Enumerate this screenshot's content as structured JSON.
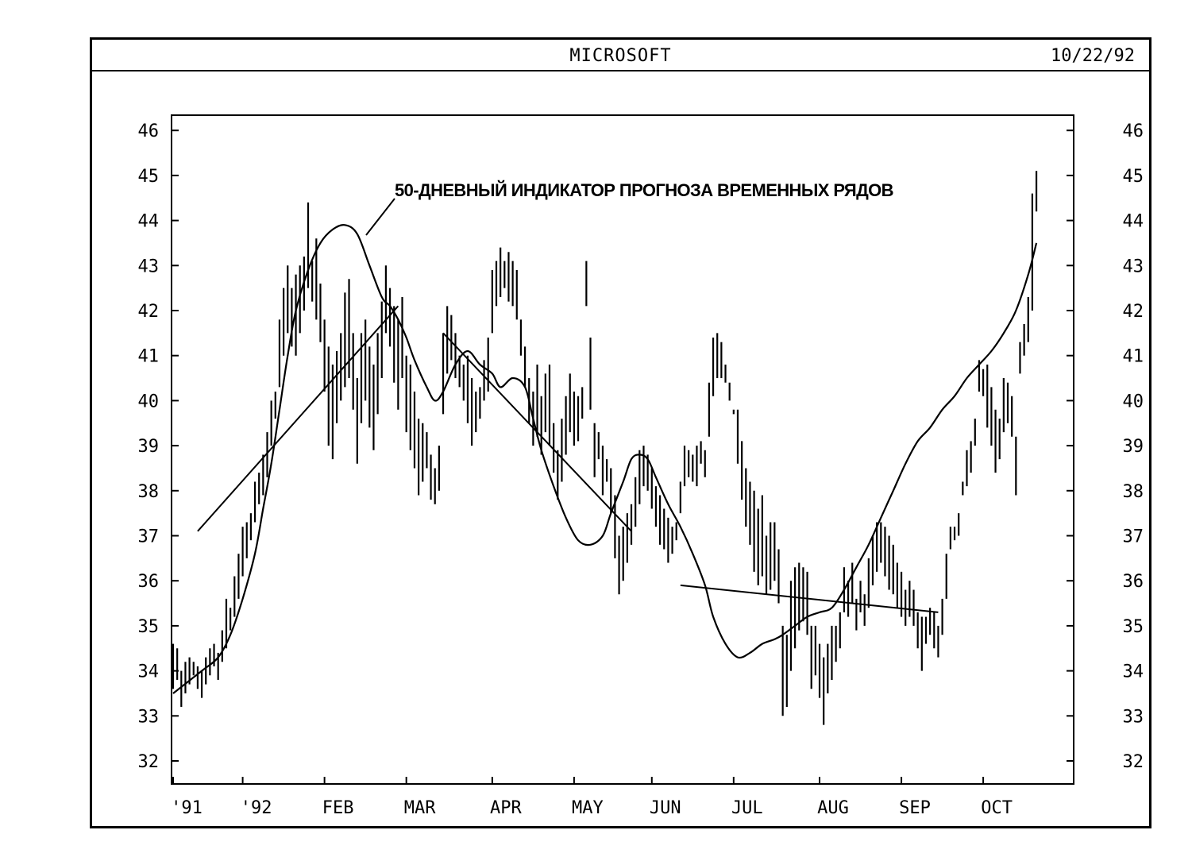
{
  "chart_data": {
    "type": "bar",
    "title": "MICROSOFT",
    "date": "10/22/92",
    "xlabel": "",
    "ylabel": "",
    "ylim": [
      32,
      46
    ],
    "yticks": [
      32,
      33,
      34,
      35,
      36,
      37,
      38,
      39,
      40,
      41,
      42,
      43,
      44,
      45,
      46
    ],
    "xlim": [
      0,
      211
    ],
    "xticks": [
      {
        "label": "'91",
        "day": 0
      },
      {
        "label": "'92",
        "day": 17
      },
      {
        "label": "FEB",
        "day": 37
      },
      {
        "label": "MAR",
        "day": 57
      },
      {
        "label": "APR",
        "day": 78
      },
      {
        "label": "MAY",
        "day": 98
      },
      {
        "label": "JUN",
        "day": 117
      },
      {
        "label": "JUL",
        "day": 137
      },
      {
        "label": "AUG",
        "day": 158
      },
      {
        "label": "SEP",
        "day": 178
      },
      {
        "label": "OCT",
        "day": 198
      }
    ],
    "annotation": "50-ДНЕВНЫЙ ИНДИКАТОР ПРОГНОЗА ВРЕМЕННЫХ РЯДОВ",
    "ohlc_bars": [
      [
        0,
        33.6,
        34.6
      ],
      [
        1,
        33.8,
        34.5
      ],
      [
        2,
        33.2,
        34.0
      ],
      [
        3,
        33.5,
        34.2
      ],
      [
        4,
        33.7,
        34.3
      ],
      [
        5,
        33.9,
        34.2
      ],
      [
        6,
        33.6,
        34.1
      ],
      [
        7,
        33.4,
        34.0
      ],
      [
        8,
        33.7,
        34.3
      ],
      [
        9,
        33.9,
        34.5
      ],
      [
        10,
        34.1,
        34.6
      ],
      [
        11,
        33.8,
        34.4
      ],
      [
        12,
        34.2,
        34.9
      ],
      [
        13,
        34.5,
        35.6
      ],
      [
        14,
        34.9,
        35.4
      ],
      [
        15,
        35.2,
        36.1
      ],
      [
        16,
        35.6,
        36.6
      ],
      [
        17,
        36.1,
        37.2
      ],
      [
        18,
        36.5,
        37.3
      ],
      [
        19,
        36.9,
        37.5
      ],
      [
        20,
        37.3,
        38.2
      ],
      [
        21,
        37.7,
        38.4
      ],
      [
        22,
        37.9,
        38.8
      ],
      [
        23,
        38.3,
        39.3
      ],
      [
        24,
        39.0,
        40.0
      ],
      [
        25,
        39.6,
        40.2
      ],
      [
        26,
        40.3,
        41.8
      ],
      [
        27,
        41.0,
        42.5
      ],
      [
        28,
        41.5,
        43.0
      ],
      [
        29,
        41.2,
        42.5
      ],
      [
        30,
        41.0,
        42.8
      ],
      [
        31,
        41.5,
        43.0
      ],
      [
        32,
        42.0,
        43.2
      ],
      [
        33,
        42.5,
        44.4
      ],
      [
        34,
        42.2,
        43.1
      ],
      [
        35,
        41.8,
        43.6
      ],
      [
        36,
        41.3,
        42.6
      ],
      [
        37,
        40.2,
        41.8
      ],
      [
        38,
        39.0,
        41.2
      ],
      [
        39,
        38.7,
        40.8
      ],
      [
        40,
        39.5,
        41.1
      ],
      [
        41,
        40.0,
        41.5
      ],
      [
        42,
        40.3,
        42.4
      ],
      [
        43,
        40.5,
        42.7
      ],
      [
        44,
        39.8,
        41.5
      ],
      [
        45,
        38.6,
        40.5
      ],
      [
        46,
        39.5,
        41.5
      ],
      [
        47,
        40.0,
        41.8
      ],
      [
        48,
        39.4,
        41.2
      ],
      [
        49,
        38.9,
        40.8
      ],
      [
        50,
        39.7,
        41.5
      ],
      [
        51,
        40.5,
        42.2
      ],
      [
        52,
        41.5,
        43.0
      ],
      [
        53,
        41.2,
        42.5
      ],
      [
        54,
        40.4,
        42.1
      ],
      [
        55,
        39.8,
        41.8
      ],
      [
        56,
        40.5,
        42.3
      ],
      [
        57,
        39.3,
        41.0
      ],
      [
        58,
        38.9,
        40.8
      ],
      [
        59,
        38.5,
        40.2
      ],
      [
        60,
        37.9,
        39.6
      ],
      [
        61,
        38.2,
        39.5
      ],
      [
        62,
        38.5,
        39.3
      ],
      [
        63,
        37.8,
        38.8
      ],
      [
        64,
        37.7,
        38.5
      ],
      [
        65,
        38.0,
        39.0
      ],
      [
        66,
        39.7,
        41.5
      ],
      [
        67,
        40.6,
        42.1
      ],
      [
        68,
        40.9,
        41.9
      ],
      [
        69,
        40.5,
        41.5
      ],
      [
        70,
        40.3,
        41.0
      ],
      [
        71,
        40.0,
        40.8
      ],
      [
        72,
        39.5,
        41.0
      ],
      [
        73,
        39.0,
        40.5
      ],
      [
        74,
        39.3,
        40.2
      ],
      [
        75,
        39.6,
        40.3
      ],
      [
        76,
        40.0,
        40.9
      ],
      [
        77,
        40.2,
        41.4
      ],
      [
        78,
        41.5,
        42.9
      ],
      [
        79,
        42.1,
        43.1
      ],
      [
        80,
        42.3,
        43.4
      ],
      [
        81,
        42.5,
        43.1
      ],
      [
        82,
        42.2,
        43.3
      ],
      [
        83,
        42.1,
        43.1
      ],
      [
        84,
        41.8,
        42.9
      ],
      [
        85,
        41.0,
        41.8
      ],
      [
        86,
        40.3,
        41.2
      ],
      [
        87,
        39.5,
        40.5
      ],
      [
        88,
        39.0,
        40.2
      ],
      [
        89,
        39.2,
        40.8
      ],
      [
        90,
        38.8,
        40.1
      ],
      [
        91,
        39.3,
        40.6
      ],
      [
        92,
        39.0,
        40.8
      ],
      [
        93,
        38.4,
        39.5
      ],
      [
        94,
        37.8,
        38.9
      ],
      [
        95,
        38.2,
        39.6
      ],
      [
        96,
        38.8,
        40.1
      ],
      [
        97,
        39.3,
        40.6
      ],
      [
        98,
        39.0,
        40.2
      ],
      [
        99,
        39.1,
        40.1
      ],
      [
        100,
        39.6,
        40.3
      ],
      [
        101,
        42.1,
        43.1
      ],
      [
        102,
        39.8,
        41.4
      ],
      [
        103,
        38.3,
        39.5
      ],
      [
        104,
        38.7,
        39.3
      ],
      [
        105,
        37.9,
        39.0
      ],
      [
        106,
        38.2,
        38.7
      ],
      [
        107,
        37.5,
        38.5
      ],
      [
        108,
        36.5,
        37.9
      ],
      [
        109,
        35.7,
        37.0
      ],
      [
        110,
        36.0,
        37.2
      ],
      [
        111,
        36.4,
        37.5
      ],
      [
        112,
        36.8,
        37.7
      ],
      [
        113,
        37.2,
        38.3
      ],
      [
        114,
        37.7,
        38.9
      ],
      [
        115,
        38.1,
        39.0
      ],
      [
        116,
        38.0,
        38.8
      ],
      [
        117,
        37.6,
        38.5
      ],
      [
        118,
        37.2,
        38.1
      ],
      [
        119,
        36.8,
        37.9
      ],
      [
        120,
        36.7,
        37.6
      ],
      [
        121,
        36.4,
        37.4
      ],
      [
        122,
        36.6,
        37.2
      ],
      [
        123,
        36.9,
        37.3
      ],
      [
        124,
        37.5,
        38.2
      ],
      [
        125,
        38.1,
        39.0
      ],
      [
        126,
        38.3,
        38.9
      ],
      [
        127,
        38.2,
        38.8
      ],
      [
        128,
        38.1,
        39.0
      ],
      [
        129,
        38.6,
        39.1
      ],
      [
        130,
        38.3,
        38.9
      ],
      [
        131,
        39.2,
        40.4
      ],
      [
        132,
        40.1,
        41.4
      ],
      [
        133,
        40.5,
        41.5
      ],
      [
        134,
        40.5,
        41.3
      ],
      [
        135,
        40.4,
        40.8
      ],
      [
        136,
        40.0,
        40.4
      ],
      [
        137,
        39.7,
        39.8
      ],
      [
        138,
        38.6,
        39.8
      ],
      [
        139,
        37.8,
        39.1
      ],
      [
        140,
        37.2,
        38.5
      ],
      [
        141,
        36.8,
        38.2
      ],
      [
        142,
        36.2,
        38.0
      ],
      [
        143,
        35.9,
        37.6
      ],
      [
        144,
        36.1,
        37.9
      ],
      [
        145,
        35.7,
        37.0
      ],
      [
        146,
        35.8,
        37.3
      ],
      [
        147,
        36.0,
        37.3
      ],
      [
        148,
        35.5,
        36.7
      ],
      [
        149,
        33.0,
        35.0
      ],
      [
        150,
        33.2,
        34.8
      ],
      [
        151,
        34.0,
        36.0
      ],
      [
        152,
        34.5,
        36.3
      ],
      [
        153,
        34.9,
        36.4
      ],
      [
        154,
        35.1,
        36.3
      ],
      [
        155,
        34.8,
        36.2
      ],
      [
        156,
        33.6,
        35.0
      ],
      [
        157,
        33.9,
        35.0
      ],
      [
        158,
        33.4,
        34.6
      ],
      [
        159,
        32.8,
        34.3
      ],
      [
        160,
        33.5,
        34.6
      ],
      [
        161,
        33.8,
        35.0
      ],
      [
        162,
        34.2,
        35.0
      ],
      [
        163,
        34.5,
        35.3
      ],
      [
        164,
        35.3,
        36.3
      ],
      [
        165,
        35.2,
        36.0
      ],
      [
        166,
        35.5,
        36.4
      ],
      [
        167,
        34.9,
        35.6
      ],
      [
        168,
        35.3,
        36.0
      ],
      [
        169,
        35.0,
        35.7
      ],
      [
        170,
        35.4,
        36.5
      ],
      [
        171,
        35.9,
        37.0
      ],
      [
        172,
        36.2,
        37.3
      ],
      [
        173,
        36.4,
        37.3
      ],
      [
        174,
        36.1,
        37.2
      ],
      [
        175,
        35.8,
        37.0
      ],
      [
        176,
        35.7,
        36.8
      ],
      [
        177,
        35.4,
        36.4
      ],
      [
        178,
        35.2,
        36.2
      ],
      [
        179,
        35.0,
        35.8
      ],
      [
        180,
        35.2,
        36.0
      ],
      [
        181,
        35.0,
        35.8
      ],
      [
        182,
        34.5,
        35.3
      ],
      [
        183,
        34.0,
        35.2
      ],
      [
        184,
        34.6,
        35.2
      ],
      [
        185,
        34.8,
        35.4
      ],
      [
        186,
        34.5,
        35.3
      ],
      [
        187,
        34.3,
        35.0
      ],
      [
        188,
        34.8,
        35.6
      ],
      [
        189,
        35.6,
        36.6
      ],
      [
        190,
        36.7,
        37.2
      ],
      [
        191,
        36.9,
        37.2
      ],
      [
        192,
        37.0,
        37.5
      ],
      [
        193,
        37.9,
        38.2
      ],
      [
        194,
        38.1,
        38.9
      ],
      [
        195,
        38.4,
        39.1
      ],
      [
        196,
        39.0,
        39.6
      ],
      [
        197,
        40.2,
        40.9
      ],
      [
        198,
        40.1,
        40.7
      ],
      [
        199,
        39.4,
        40.8
      ],
      [
        200,
        39.0,
        40.3
      ],
      [
        201,
        38.4,
        39.8
      ],
      [
        202,
        38.7,
        39.6
      ],
      [
        203,
        39.3,
        40.5
      ],
      [
        204,
        39.5,
        40.4
      ],
      [
        205,
        39.2,
        40.1
      ],
      [
        206,
        37.9,
        39.2
      ],
      [
        207,
        40.6,
        41.3
      ],
      [
        208,
        41.0,
        41.7
      ],
      [
        209,
        41.3,
        42.3
      ],
      [
        210,
        42.0,
        44.6
      ],
      [
        211,
        44.2,
        45.1
      ]
    ],
    "forecast_indicator": [
      [
        0,
        33.5
      ],
      [
        7,
        34.0
      ],
      [
        11,
        34.3
      ],
      [
        14,
        34.8
      ],
      [
        17,
        35.6
      ],
      [
        20,
        36.6
      ],
      [
        22,
        37.6
      ],
      [
        24,
        38.6
      ],
      [
        26,
        39.8
      ],
      [
        28,
        41.0
      ],
      [
        30,
        42.0
      ],
      [
        33,
        42.9
      ],
      [
        36,
        43.5
      ],
      [
        39,
        43.8
      ],
      [
        42,
        43.9
      ],
      [
        45,
        43.7
      ],
      [
        48,
        43.0
      ],
      [
        51,
        42.3
      ],
      [
        53,
        42.1
      ],
      [
        55,
        41.8
      ],
      [
        57,
        41.4
      ],
      [
        59,
        40.9
      ],
      [
        62,
        40.3
      ],
      [
        64,
        40.0
      ],
      [
        66,
        40.2
      ],
      [
        69,
        40.8
      ],
      [
        72,
        41.1
      ],
      [
        75,
        40.8
      ],
      [
        78,
        40.6
      ],
      [
        80,
        40.3
      ],
      [
        83,
        40.5
      ],
      [
        86,
        40.3
      ],
      [
        88,
        39.6
      ],
      [
        90,
        38.9
      ],
      [
        93,
        38.1
      ],
      [
        96,
        37.4
      ],
      [
        99,
        36.9
      ],
      [
        102,
        36.8
      ],
      [
        105,
        37.0
      ],
      [
        107,
        37.5
      ],
      [
        110,
        38.2
      ],
      [
        112,
        38.7
      ],
      [
        114,
        38.8
      ],
      [
        116,
        38.7
      ],
      [
        118,
        38.3
      ],
      [
        121,
        37.7
      ],
      [
        124,
        37.2
      ],
      [
        127,
        36.6
      ],
      [
        130,
        35.9
      ],
      [
        132,
        35.2
      ],
      [
        135,
        34.6
      ],
      [
        138,
        34.3
      ],
      [
        141,
        34.4
      ],
      [
        144,
        34.6
      ],
      [
        147,
        34.7
      ],
      [
        149,
        34.8
      ],
      [
        152,
        35.0
      ],
      [
        155,
        35.2
      ],
      [
        158,
        35.3
      ],
      [
        161,
        35.4
      ],
      [
        164,
        35.8
      ],
      [
        167,
        36.3
      ],
      [
        170,
        36.8
      ],
      [
        173,
        37.4
      ],
      [
        176,
        38.0
      ],
      [
        179,
        38.6
      ],
      [
        182,
        39.1
      ],
      [
        185,
        39.4
      ],
      [
        188,
        39.8
      ],
      [
        191,
        40.1
      ],
      [
        194,
        40.5
      ],
      [
        197,
        40.8
      ],
      [
        200,
        41.1
      ],
      [
        203,
        41.5
      ],
      [
        206,
        42.0
      ],
      [
        209,
        42.8
      ],
      [
        211,
        43.5
      ]
    ],
    "trend_lines": [
      {
        "from": [
          6,
          37.1
        ],
        "to": [
          55,
          42.1
        ]
      },
      {
        "from": [
          66,
          41.5
        ],
        "to": [
          112,
          37.1
        ]
      },
      {
        "from": [
          124,
          35.9
        ],
        "to": [
          187,
          35.3
        ]
      }
    ]
  }
}
